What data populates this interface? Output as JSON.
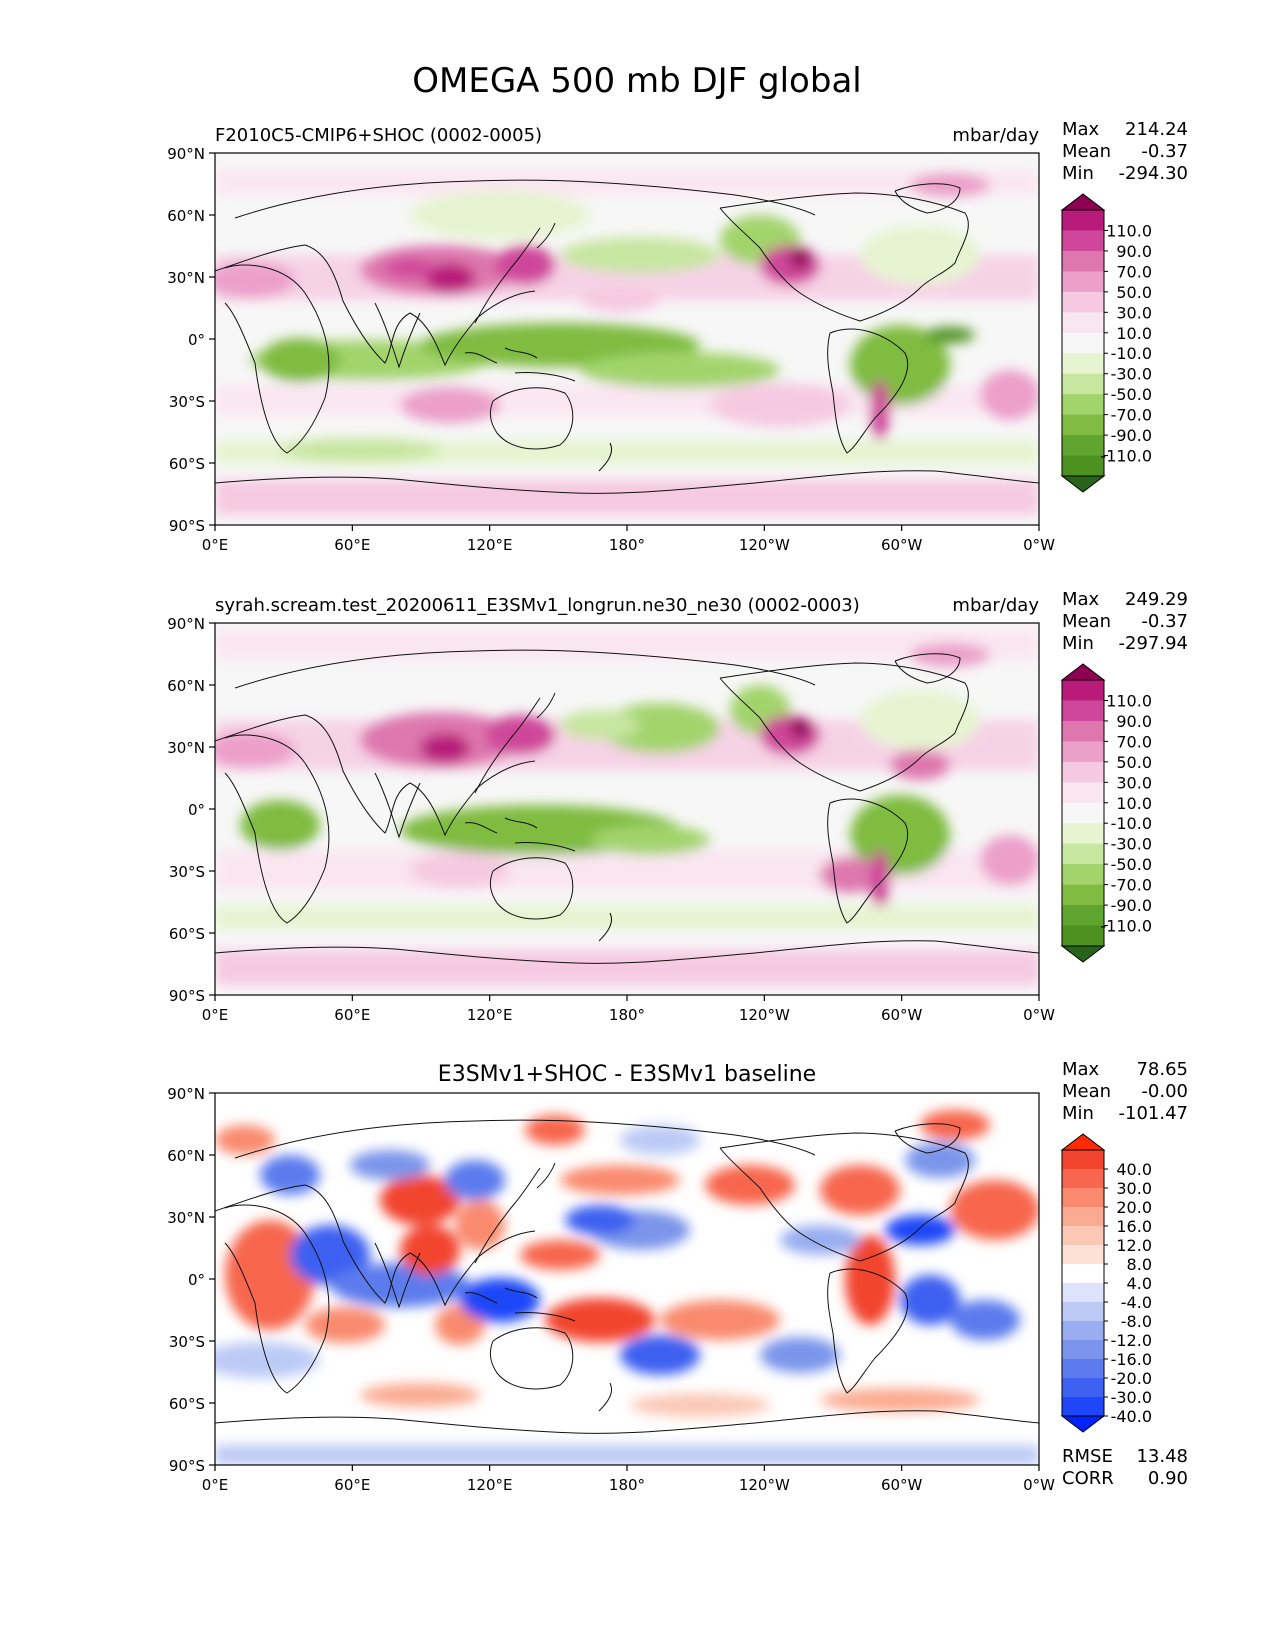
{
  "figure": {
    "title": "OMEGA 500 mb DJF global"
  },
  "axes": {
    "lat_ticks": [
      "90°N",
      "60°N",
      "30°N",
      "0°",
      "30°S",
      "60°S",
      "90°S"
    ],
    "lon_ticks": [
      "0°E",
      "60°E",
      "120°E",
      "180°",
      "120°W",
      "60°W",
      "0°W"
    ]
  },
  "panels": [
    {
      "id": "test",
      "left_title": "F2010C5-CMIP6+SHOC (0002-0005)",
      "units": "mbar/day",
      "stats": {
        "max_label": "Max",
        "max": "214.24",
        "mean_label": "Mean",
        "mean": "-0.37",
        "min_label": "Min",
        "min": "-294.30"
      },
      "colorbar": {
        "labels": [
          "110.0",
          "90.0",
          "70.0",
          "50.0",
          "30.0",
          "10.0",
          "-10.0",
          "-30.0",
          "-50.0",
          "-70.0",
          "-90.0",
          "-110.0"
        ],
        "colors": [
          "#8e0152",
          "#b81b7a",
          "#cf479a",
          "#de77ae",
          "#ec9fc9",
          "#f6c9e2",
          "#fae6f1",
          "#f7f7f7",
          "#e6f4d1",
          "#c7e6a0",
          "#a2d46c",
          "#7fbc41",
          "#5fa530",
          "#4d9221",
          "#276419"
        ]
      }
    },
    {
      "id": "ref",
      "left_title": "syrah.scream.test_20200611_E3SMv1_longrun.ne30_ne30 (0002-0003)",
      "units": "mbar/day",
      "stats": {
        "max_label": "Max",
        "max": "249.29",
        "mean_label": "Mean",
        "mean": "-0.37",
        "min_label": "Min",
        "min": "-297.94"
      },
      "colorbar": {
        "labels": [
          "110.0",
          "90.0",
          "70.0",
          "50.0",
          "30.0",
          "10.0",
          "-10.0",
          "-30.0",
          "-50.0",
          "-70.0",
          "-90.0",
          "-110.0"
        ],
        "colors": [
          "#8e0152",
          "#b81b7a",
          "#cf479a",
          "#de77ae",
          "#ec9fc9",
          "#f6c9e2",
          "#fae6f1",
          "#f7f7f7",
          "#e6f4d1",
          "#c7e6a0",
          "#a2d46c",
          "#7fbc41",
          "#5fa530",
          "#4d9221",
          "#276419"
        ]
      }
    },
    {
      "id": "diff",
      "center_title": "E3SMv1+SHOC - E3SMv1 baseline",
      "stats": {
        "max_label": "Max",
        "max": "78.65",
        "mean_label": "Mean",
        "mean": "-0.00",
        "min_label": "Min",
        "min": "-101.47"
      },
      "metrics": {
        "rmse_label": "RMSE",
        "rmse": "13.48",
        "corr_label": "CORR",
        "corr": "0.90"
      },
      "colorbar": {
        "labels": [
          "40.0",
          "30.0",
          "20.0",
          "16.0",
          "12.0",
          "8.0",
          "4.0",
          "-4.0",
          "-8.0",
          "-12.0",
          "-16.0",
          "-20.0",
          "-30.0",
          "-40.0"
        ],
        "colors": [
          "#ff2a00",
          "#f2442e",
          "#f7664e",
          "#f98a6e",
          "#fbab91",
          "#fcc8b6",
          "#fde1d6",
          "#ffffff",
          "#dde3fb",
          "#bccaf5",
          "#99adf0",
          "#7a95eb",
          "#5b7bee",
          "#3d61f0",
          "#1f46f7",
          "#0022ff"
        ]
      }
    }
  ]
}
